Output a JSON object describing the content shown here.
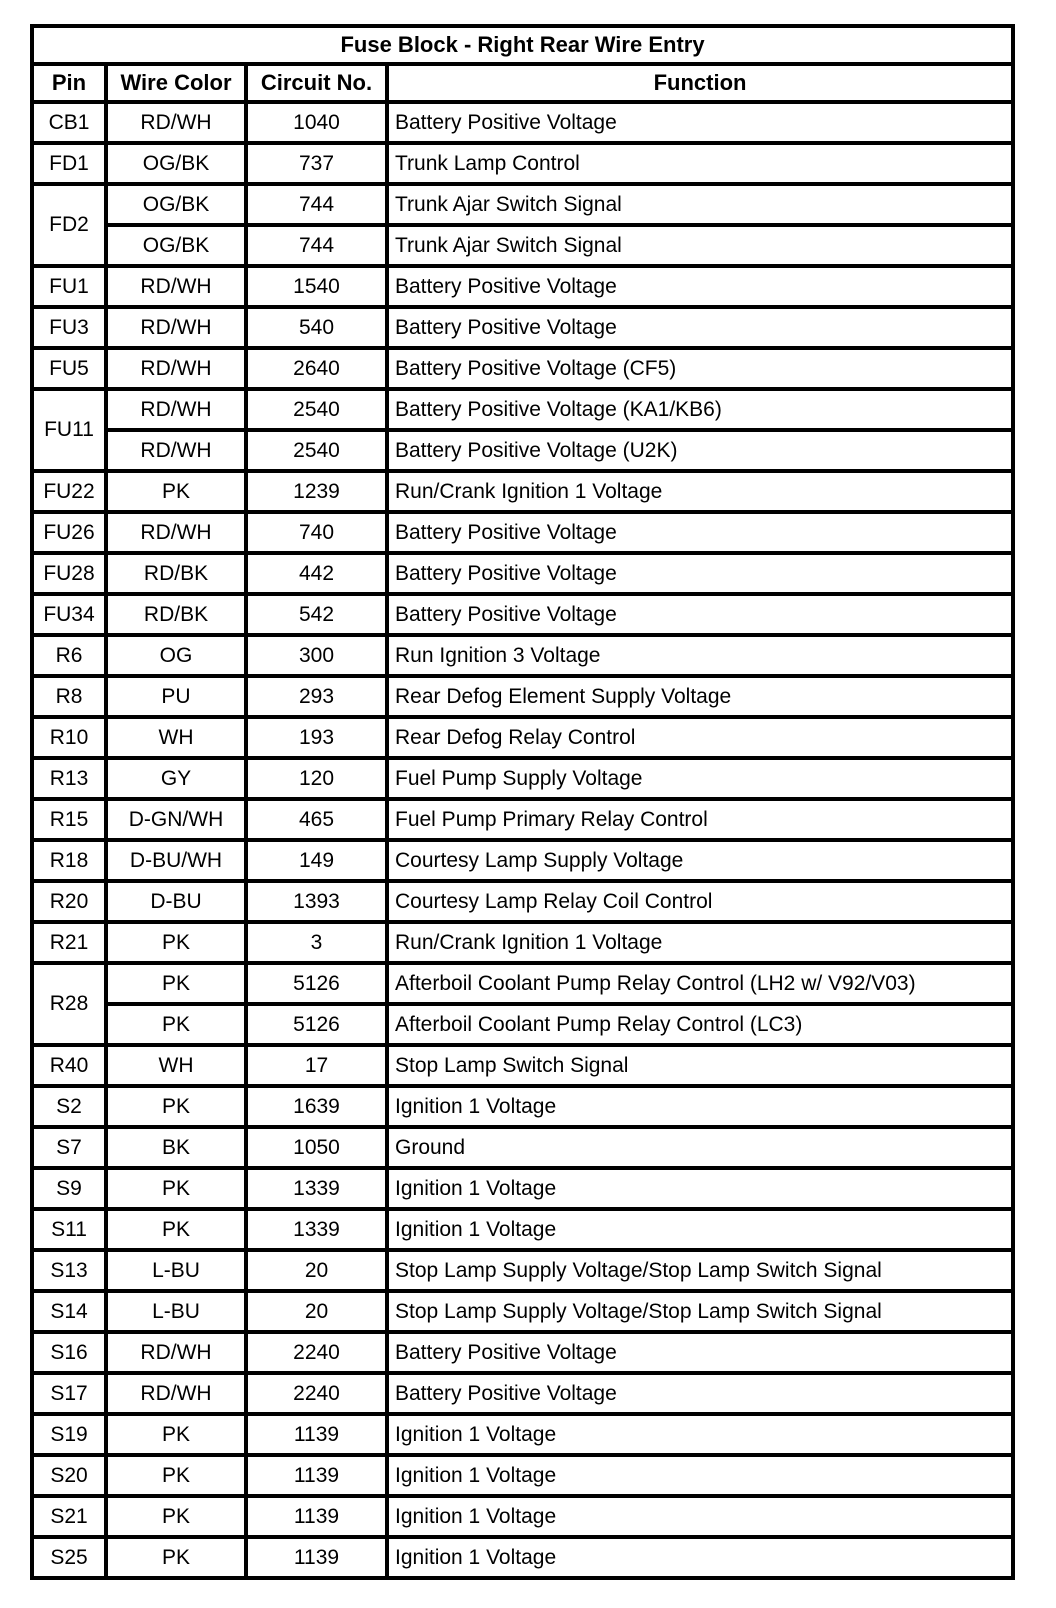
{
  "table": {
    "title": "Fuse Block - Right Rear Wire Entry",
    "headers": [
      "Pin",
      "Wire Color",
      "Circuit No.",
      "Function"
    ],
    "rows": [
      {
        "pin": "CB1",
        "entries": [
          {
            "color": "RD/WH",
            "circuit": "1040",
            "function": "Battery Positive Voltage"
          }
        ]
      },
      {
        "pin": "FD1",
        "entries": [
          {
            "color": "OG/BK",
            "circuit": "737",
            "function": "Trunk Lamp Control"
          }
        ]
      },
      {
        "pin": "FD2",
        "entries": [
          {
            "color": "OG/BK",
            "circuit": "744",
            "function": "Trunk Ajar Switch Signal"
          },
          {
            "color": "OG/BK",
            "circuit": "744",
            "function": "Trunk Ajar Switch Signal"
          }
        ]
      },
      {
        "pin": "FU1",
        "entries": [
          {
            "color": "RD/WH",
            "circuit": "1540",
            "function": "Battery Positive Voltage"
          }
        ]
      },
      {
        "pin": "FU3",
        "entries": [
          {
            "color": "RD/WH",
            "circuit": "540",
            "function": "Battery Positive Voltage"
          }
        ]
      },
      {
        "pin": "FU5",
        "entries": [
          {
            "color": "RD/WH",
            "circuit": "2640",
            "function": "Battery Positive Voltage (CF5)"
          }
        ]
      },
      {
        "pin": "FU11",
        "entries": [
          {
            "color": "RD/WH",
            "circuit": "2540",
            "function": "Battery Positive Voltage (KA1/KB6)"
          },
          {
            "color": "RD/WH",
            "circuit": "2540",
            "function": "Battery Positive Voltage (U2K)"
          }
        ]
      },
      {
        "pin": "FU22",
        "entries": [
          {
            "color": "PK",
            "circuit": "1239",
            "function": "Run/Crank Ignition 1 Voltage"
          }
        ]
      },
      {
        "pin": "FU26",
        "entries": [
          {
            "color": "RD/WH",
            "circuit": "740",
            "function": "Battery Positive Voltage"
          }
        ]
      },
      {
        "pin": "FU28",
        "entries": [
          {
            "color": "RD/BK",
            "circuit": "442",
            "function": "Battery Positive Voltage"
          }
        ]
      },
      {
        "pin": "FU34",
        "entries": [
          {
            "color": "RD/BK",
            "circuit": "542",
            "function": "Battery Positive Voltage"
          }
        ]
      },
      {
        "pin": "R6",
        "entries": [
          {
            "color": "OG",
            "circuit": "300",
            "function": "Run Ignition 3 Voltage"
          }
        ]
      },
      {
        "pin": "R8",
        "entries": [
          {
            "color": "PU",
            "circuit": "293",
            "function": "Rear Defog Element Supply Voltage"
          }
        ]
      },
      {
        "pin": "R10",
        "entries": [
          {
            "color": "WH",
            "circuit": "193",
            "function": "Rear Defog Relay Control"
          }
        ]
      },
      {
        "pin": "R13",
        "entries": [
          {
            "color": "GY",
            "circuit": "120",
            "function": "Fuel Pump Supply Voltage"
          }
        ]
      },
      {
        "pin": "R15",
        "entries": [
          {
            "color": "D-GN/WH",
            "circuit": "465",
            "function": "Fuel Pump Primary Relay Control"
          }
        ]
      },
      {
        "pin": "R18",
        "entries": [
          {
            "color": "D-BU/WH",
            "circuit": "149",
            "function": "Courtesy Lamp Supply Voltage"
          }
        ]
      },
      {
        "pin": "R20",
        "entries": [
          {
            "color": "D-BU",
            "circuit": "1393",
            "function": "Courtesy Lamp Relay Coil Control"
          }
        ]
      },
      {
        "pin": "R21",
        "entries": [
          {
            "color": "PK",
            "circuit": "3",
            "function": "Run/Crank Ignition 1 Voltage"
          }
        ]
      },
      {
        "pin": "R28",
        "entries": [
          {
            "color": "PK",
            "circuit": "5126",
            "function": "Afterboil Coolant Pump Relay Control (LH2 w/ V92/V03)"
          },
          {
            "color": "PK",
            "circuit": "5126",
            "function": "Afterboil Coolant Pump Relay Control (LC3)"
          }
        ]
      },
      {
        "pin": "R40",
        "entries": [
          {
            "color": "WH",
            "circuit": "17",
            "function": "Stop Lamp Switch Signal"
          }
        ]
      },
      {
        "pin": "S2",
        "entries": [
          {
            "color": "PK",
            "circuit": "1639",
            "function": "Ignition 1 Voltage"
          }
        ]
      },
      {
        "pin": "S7",
        "entries": [
          {
            "color": "BK",
            "circuit": "1050",
            "function": "Ground"
          }
        ]
      },
      {
        "pin": "S9",
        "entries": [
          {
            "color": "PK",
            "circuit": "1339",
            "function": "Ignition 1 Voltage"
          }
        ]
      },
      {
        "pin": "S11",
        "entries": [
          {
            "color": "PK",
            "circuit": "1339",
            "function": "Ignition 1 Voltage"
          }
        ]
      },
      {
        "pin": "S13",
        "entries": [
          {
            "color": "L-BU",
            "circuit": "20",
            "function": "Stop Lamp Supply Voltage/Stop Lamp Switch Signal"
          }
        ]
      },
      {
        "pin": "S14",
        "entries": [
          {
            "color": "L-BU",
            "circuit": "20",
            "function": "Stop Lamp Supply Voltage/Stop Lamp Switch Signal"
          }
        ]
      },
      {
        "pin": "S16",
        "entries": [
          {
            "color": "RD/WH",
            "circuit": "2240",
            "function": "Battery Positive Voltage"
          }
        ]
      },
      {
        "pin": "S17",
        "entries": [
          {
            "color": "RD/WH",
            "circuit": "2240",
            "function": "Battery Positive Voltage"
          }
        ]
      },
      {
        "pin": "S19",
        "entries": [
          {
            "color": "PK",
            "circuit": "1139",
            "function": "Ignition 1 Voltage"
          }
        ]
      },
      {
        "pin": "S20",
        "entries": [
          {
            "color": "PK",
            "circuit": "1139",
            "function": "Ignition 1 Voltage"
          }
        ]
      },
      {
        "pin": "S21",
        "entries": [
          {
            "color": "PK",
            "circuit": "1139",
            "function": "Ignition 1 Voltage"
          }
        ]
      },
      {
        "pin": "S25",
        "entries": [
          {
            "color": "PK",
            "circuit": "1139",
            "function": "Ignition 1 Voltage"
          }
        ]
      }
    ]
  }
}
